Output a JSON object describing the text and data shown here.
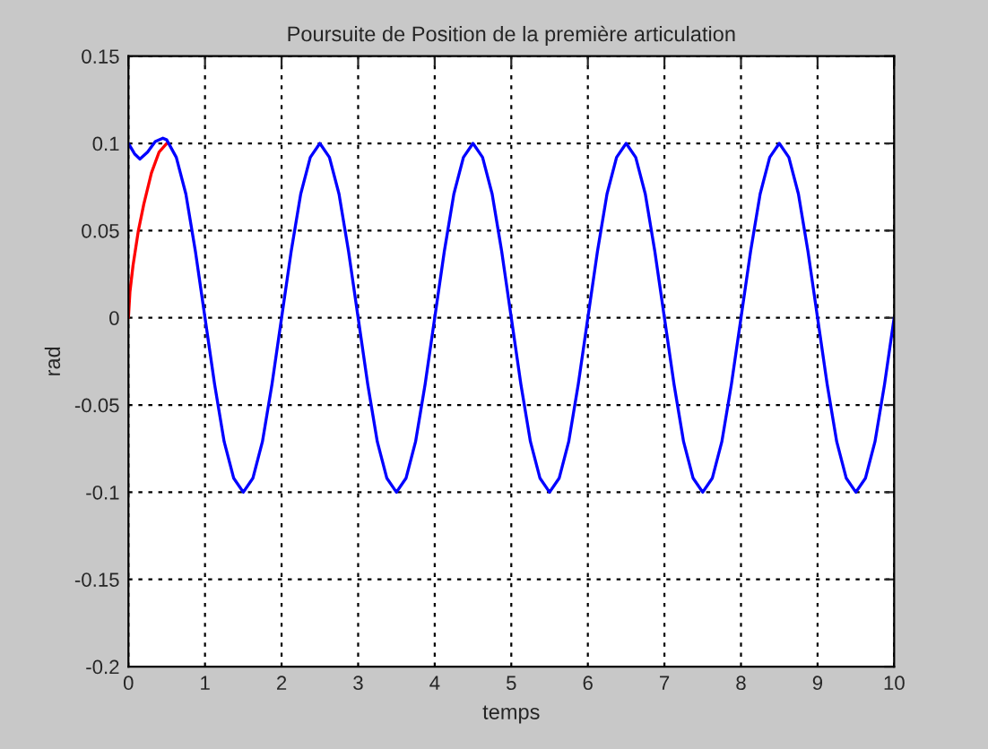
{
  "chart_data": {
    "type": "line",
    "title": "Poursuite de Position de la première articulation",
    "xlabel": "temps",
    "ylabel": "rad",
    "xlim": [
      0,
      10
    ],
    "xticks": [
      0,
      1,
      2,
      3,
      4,
      5,
      6,
      7,
      8,
      9,
      10
    ],
    "ylim": [
      -0.2,
      0.15
    ],
    "yticks": [
      -0.2,
      -0.15,
      -0.1,
      -0.05,
      0,
      0.05,
      0.1,
      0.15
    ],
    "grid": true,
    "legend": false,
    "series": [
      {
        "color": "#ff0000",
        "x": [
          0,
          0.02,
          0.06,
          0.13,
          0.2,
          0.3,
          0.4,
          0.5
        ],
        "values": [
          0,
          0.015,
          0.03,
          0.05,
          0.065,
          0.083,
          0.095,
          0.1
        ]
      },
      {
        "color": "#0000ff",
        "x": [
          0,
          0.08,
          0.15,
          0.25,
          0.35,
          0.45,
          0.5,
          0.625,
          0.75,
          0.875,
          1,
          1.125,
          1.25,
          1.375,
          1.5,
          1.625,
          1.75,
          1.875,
          2,
          2.125,
          2.25,
          2.375,
          2.5,
          2.625,
          2.75,
          2.875,
          3,
          3.125,
          3.25,
          3.375,
          3.5,
          3.625,
          3.75,
          3.875,
          4,
          4.125,
          4.25,
          4.375,
          4.5,
          4.625,
          4.75,
          4.875,
          5,
          5.125,
          5.25,
          5.375,
          5.5,
          5.625,
          5.75,
          5.875,
          6,
          6.125,
          6.25,
          6.375,
          6.5,
          6.625,
          6.75,
          6.875,
          7,
          7.125,
          7.25,
          7.375,
          7.5,
          7.625,
          7.75,
          7.875,
          8,
          8.125,
          8.25,
          8.375,
          8.5,
          8.625,
          8.75,
          8.875,
          9,
          9.125,
          9.25,
          9.375,
          9.5,
          9.625,
          9.75,
          9.875,
          10
        ],
        "values": [
          0.1,
          0.094,
          0.091,
          0.095,
          0.101,
          0.103,
          0.102,
          0.092,
          0.071,
          0.038,
          0,
          -0.038,
          -0.071,
          -0.092,
          -0.1,
          -0.092,
          -0.071,
          -0.038,
          0,
          0.038,
          0.071,
          0.092,
          0.1,
          0.092,
          0.071,
          0.038,
          0,
          -0.038,
          -0.071,
          -0.092,
          -0.1,
          -0.092,
          -0.071,
          -0.038,
          0,
          0.038,
          0.071,
          0.092,
          0.1,
          0.092,
          0.071,
          0.038,
          0,
          -0.038,
          -0.071,
          -0.092,
          -0.1,
          -0.092,
          -0.071,
          -0.038,
          0,
          0.038,
          0.071,
          0.092,
          0.1,
          0.092,
          0.071,
          0.038,
          0,
          -0.038,
          -0.071,
          -0.092,
          -0.1,
          -0.092,
          -0.071,
          -0.038,
          0,
          0.038,
          0.071,
          0.092,
          0.1,
          0.092,
          0.071,
          0.038,
          0,
          -0.038,
          -0.071,
          -0.092,
          -0.1,
          -0.092,
          -0.071,
          -0.038,
          0
        ]
      }
    ]
  }
}
